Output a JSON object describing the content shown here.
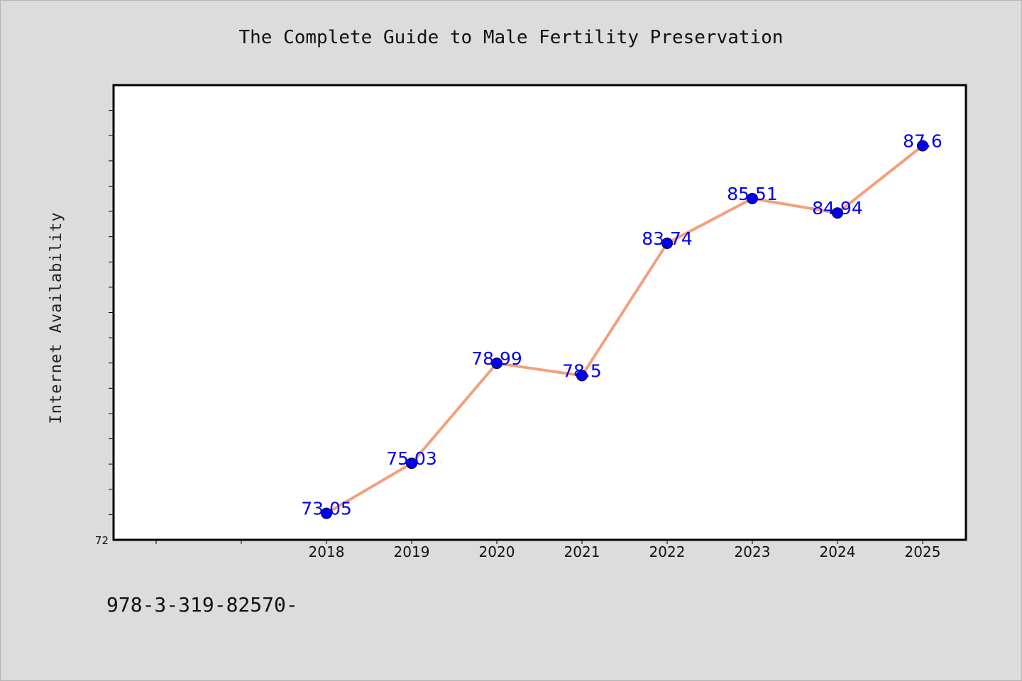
{
  "chart_data": {
    "type": "line",
    "title": "The Complete Guide to Male Fertility Preservation",
    "ylabel": "Internet Availability",
    "xlabel": "",
    "x": [
      "2018",
      "2019",
      "2020",
      "2021",
      "2022",
      "2023",
      "2024",
      "2025"
    ],
    "values": [
      73.05,
      75.03,
      78.99,
      78.5,
      83.74,
      85.51,
      84.94,
      87.6
    ],
    "data_labels": [
      "73.05",
      "75.03",
      "78.99",
      "78.5",
      "83.74",
      "85.51",
      "84.94",
      "87.6"
    ],
    "y_tick_labels": [
      "72"
    ],
    "ylim": [
      72,
      90
    ],
    "grid": false,
    "legend": "none",
    "colors": {
      "line": "#f4a07c",
      "marker": "#0000ee",
      "label": "#0000ee",
      "plot_background": "#ffffff",
      "page_background": "#dcdcdc"
    }
  },
  "footer": {
    "text": "978-3-319-82570-"
  }
}
